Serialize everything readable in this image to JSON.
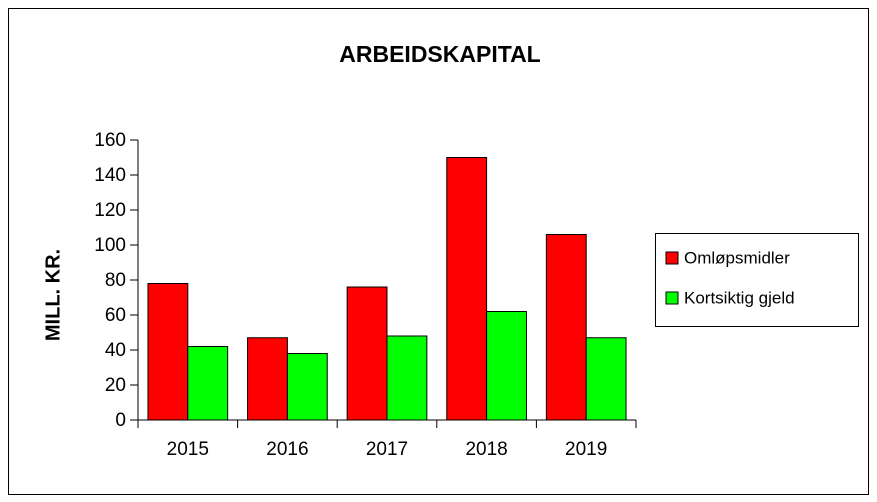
{
  "chart_data": {
    "type": "bar",
    "title": "ARBEIDSKAPITAL",
    "y_label": "MILL. KR.",
    "categories": [
      "2015",
      "2016",
      "2017",
      "2018",
      "2019"
    ],
    "series": [
      {
        "name": "Omløpsmidler",
        "color": "#ff0000",
        "values": [
          78,
          47,
          76,
          150,
          106
        ]
      },
      {
        "name": "Kortsiktig gjeld",
        "color": "#00ff00",
        "values": [
          42,
          38,
          48,
          62,
          47
        ]
      }
    ],
    "ylim": [
      0,
      160
    ],
    "yticks": [
      0,
      20,
      40,
      60,
      80,
      100,
      120,
      140,
      160
    ],
    "grid": false,
    "legend": "right"
  }
}
